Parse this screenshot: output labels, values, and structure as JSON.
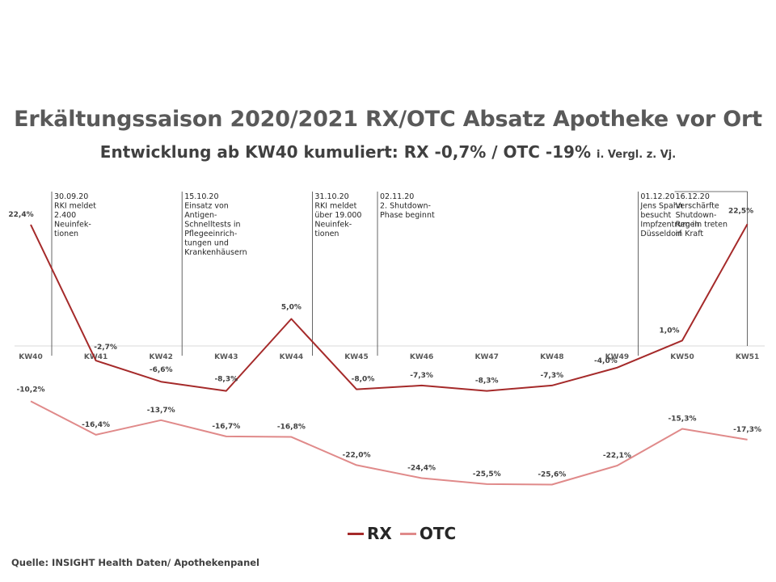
{
  "chart_data": {
    "type": "line",
    "title": "Erkältungssaison 2020/2021 RX/OTC Absatz Apotheke vor Ort",
    "subtitle_main": "Entwicklung ab KW40 kumuliert: RX -0,7% / OTC -19%",
    "subtitle_note": "i. Vergl. z. Vj.",
    "categories": [
      "KW40",
      "KW41",
      "KW42",
      "KW43",
      "KW44",
      "KW45",
      "KW46",
      "KW47",
      "KW48",
      "KW49",
      "KW50",
      "KW51"
    ],
    "series": [
      {
        "name": "RX",
        "color": "#a52a2a",
        "values": [
          22.4,
          -2.7,
          -6.6,
          -8.3,
          5.0,
          -8.0,
          -7.3,
          -8.3,
          -7.3,
          -4.0,
          1.0,
          22.5
        ],
        "labels": [
          "22,4%",
          "-2,7%",
          "-6,6%",
          "-8,3%",
          "5,0%",
          "-8,0%",
          "-7,3%",
          "-8,3%",
          "-7,3%",
          "-4,0%",
          "1,0%",
          "22,5%"
        ]
      },
      {
        "name": "OTC",
        "color": "#e08a8a",
        "values": [
          -10.2,
          -16.4,
          -13.7,
          -16.7,
          -16.8,
          -22.0,
          -24.4,
          -25.5,
          -25.6,
          -22.1,
          -15.3,
          -17.3
        ],
        "labels": [
          "-10,2%",
          "-16,4%",
          "-13,7%",
          "-16,7%",
          "-16,8%",
          "-22,0%",
          "-24,4%",
          "-25,5%",
          "-25,6%",
          "-22,1%",
          "-15,3%",
          "-17,3%"
        ]
      }
    ],
    "annotations": [
      {
        "category": "KW40",
        "lines": [
          "30.09.20",
          "RKI meldet",
          "2.400",
          "Neuinfek-",
          "tionen"
        ]
      },
      {
        "category": "KW42",
        "lines": [
          "15.10.20",
          "Einsatz von",
          "Antigen-",
          "Schnelltests in",
          "Pflegeeinrich-",
          "tungen und",
          "Krankenhäusern"
        ]
      },
      {
        "category": "KW44",
        "lines": [
          "31.10.20",
          "RKI meldet",
          "über 19.000",
          "Neuinfek-",
          "tionen"
        ]
      },
      {
        "category": "KW45",
        "lines": [
          "02.11.20",
          "2. Shutdown-",
          "Phase beginnt"
        ]
      },
      {
        "category": "KW49",
        "lines": [
          "01.12.20",
          "Jens Spahn",
          "besucht",
          "Impfzentrum in",
          "Düsseldorf"
        ]
      },
      {
        "category": "KW51",
        "lines": [
          "16.12.20",
          "Verschärfte",
          "Shutdown-",
          "Regeln treten",
          "in Kraft"
        ]
      }
    ],
    "grid": false
  },
  "legend": {
    "rx": "RX",
    "otc": "OTC"
  },
  "source": "Quelle: INSIGHT Health Daten/ Apothekenpanel"
}
